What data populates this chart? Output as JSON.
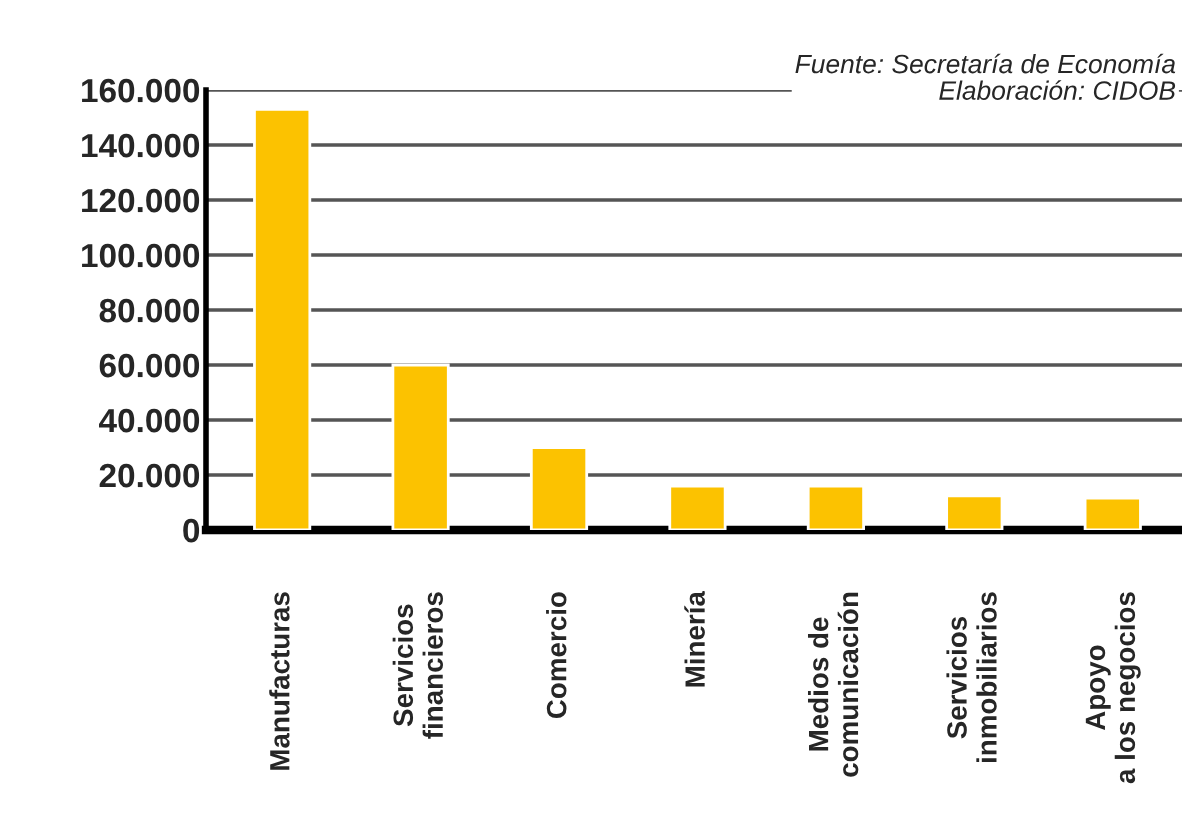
{
  "chart_data": {
    "type": "bar",
    "categories": [
      "Manufacturas",
      "Servicios\nfinancieros",
      "Comercio",
      "Minería",
      "Medios de\ncomunicación",
      "Servicios\ninmobiliarios",
      "Apoyo\na los negocios"
    ],
    "values": [
      153000,
      60000,
      30000,
      16000,
      16000,
      12400,
      11600
    ],
    "color": "#fcc200",
    "ylim": [
      0,
      160000
    ],
    "yticks": [
      {
        "value": 0,
        "label": "0"
      },
      {
        "value": 20000,
        "label": "20.000"
      },
      {
        "value": 40000,
        "label": "40.000"
      },
      {
        "value": 60000,
        "label": "60.000"
      },
      {
        "value": 80000,
        "label": "80.000"
      },
      {
        "value": 100000,
        "label": "100.000"
      },
      {
        "value": 120000,
        "label": "120.000"
      },
      {
        "value": 140000,
        "label": "140.000"
      },
      {
        "value": 160000,
        "label": "160.000"
      }
    ],
    "grid": "y",
    "annotations": [
      "Fuente: Secretaría de Economía\nElaboración: CIDOB"
    ]
  }
}
